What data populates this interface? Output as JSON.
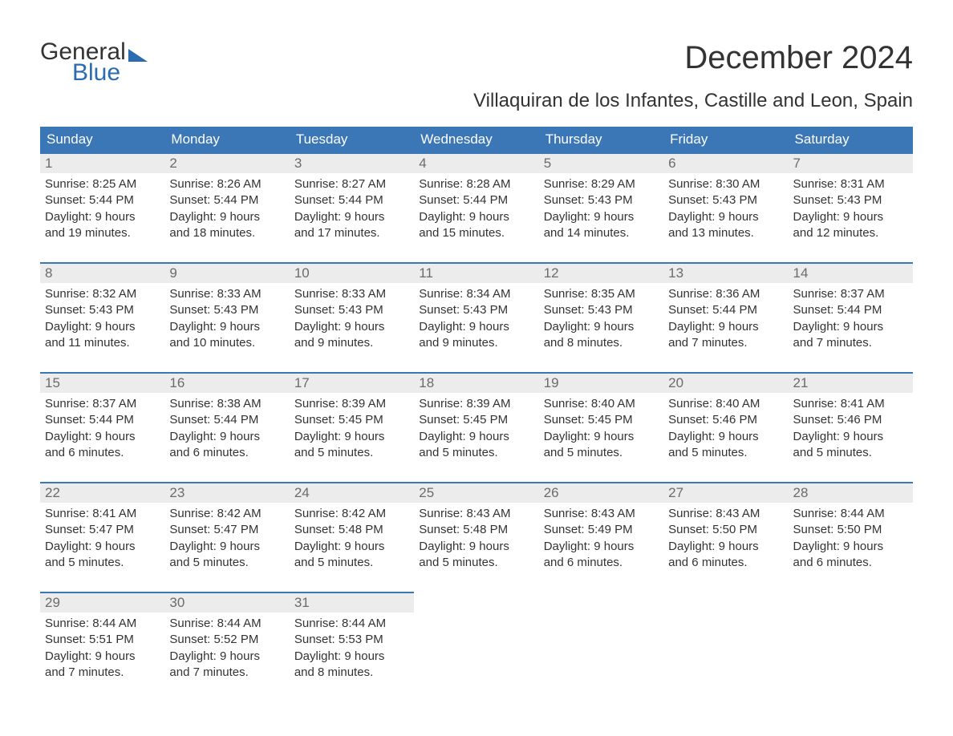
{
  "brand": {
    "part1": "General",
    "part2": "Blue"
  },
  "title": "December 2024",
  "subtitle": "Villaquiran de los Infantes, Castille and Leon, Spain",
  "colors": {
    "header_bg": "#3b76b6",
    "header_text": "#ffffff",
    "daynum_bg": "#ececec",
    "daynum_border": "#3b76b6",
    "body_text": "#333333",
    "brand_blue": "#2b6bb0"
  },
  "typography": {
    "title_fontsize": 40,
    "subtitle_fontsize": 24,
    "header_fontsize": 17,
    "body_fontsize": 15
  },
  "dow": [
    "Sunday",
    "Monday",
    "Tuesday",
    "Wednesday",
    "Thursday",
    "Friday",
    "Saturday"
  ],
  "weeks": [
    [
      {
        "n": "1",
        "sr": "Sunrise: 8:25 AM",
        "ss": "Sunset: 5:44 PM",
        "d1": "Daylight: 9 hours",
        "d2": "and 19 minutes."
      },
      {
        "n": "2",
        "sr": "Sunrise: 8:26 AM",
        "ss": "Sunset: 5:44 PM",
        "d1": "Daylight: 9 hours",
        "d2": "and 18 minutes."
      },
      {
        "n": "3",
        "sr": "Sunrise: 8:27 AM",
        "ss": "Sunset: 5:44 PM",
        "d1": "Daylight: 9 hours",
        "d2": "and 17 minutes."
      },
      {
        "n": "4",
        "sr": "Sunrise: 8:28 AM",
        "ss": "Sunset: 5:44 PM",
        "d1": "Daylight: 9 hours",
        "d2": "and 15 minutes."
      },
      {
        "n": "5",
        "sr": "Sunrise: 8:29 AM",
        "ss": "Sunset: 5:43 PM",
        "d1": "Daylight: 9 hours",
        "d2": "and 14 minutes."
      },
      {
        "n": "6",
        "sr": "Sunrise: 8:30 AM",
        "ss": "Sunset: 5:43 PM",
        "d1": "Daylight: 9 hours",
        "d2": "and 13 minutes."
      },
      {
        "n": "7",
        "sr": "Sunrise: 8:31 AM",
        "ss": "Sunset: 5:43 PM",
        "d1": "Daylight: 9 hours",
        "d2": "and 12 minutes."
      }
    ],
    [
      {
        "n": "8",
        "sr": "Sunrise: 8:32 AM",
        "ss": "Sunset: 5:43 PM",
        "d1": "Daylight: 9 hours",
        "d2": "and 11 minutes."
      },
      {
        "n": "9",
        "sr": "Sunrise: 8:33 AM",
        "ss": "Sunset: 5:43 PM",
        "d1": "Daylight: 9 hours",
        "d2": "and 10 minutes."
      },
      {
        "n": "10",
        "sr": "Sunrise: 8:33 AM",
        "ss": "Sunset: 5:43 PM",
        "d1": "Daylight: 9 hours",
        "d2": "and 9 minutes."
      },
      {
        "n": "11",
        "sr": "Sunrise: 8:34 AM",
        "ss": "Sunset: 5:43 PM",
        "d1": "Daylight: 9 hours",
        "d2": "and 9 minutes."
      },
      {
        "n": "12",
        "sr": "Sunrise: 8:35 AM",
        "ss": "Sunset: 5:43 PM",
        "d1": "Daylight: 9 hours",
        "d2": "and 8 minutes."
      },
      {
        "n": "13",
        "sr": "Sunrise: 8:36 AM",
        "ss": "Sunset: 5:44 PM",
        "d1": "Daylight: 9 hours",
        "d2": "and 7 minutes."
      },
      {
        "n": "14",
        "sr": "Sunrise: 8:37 AM",
        "ss": "Sunset: 5:44 PM",
        "d1": "Daylight: 9 hours",
        "d2": "and 7 minutes."
      }
    ],
    [
      {
        "n": "15",
        "sr": "Sunrise: 8:37 AM",
        "ss": "Sunset: 5:44 PM",
        "d1": "Daylight: 9 hours",
        "d2": "and 6 minutes."
      },
      {
        "n": "16",
        "sr": "Sunrise: 8:38 AM",
        "ss": "Sunset: 5:44 PM",
        "d1": "Daylight: 9 hours",
        "d2": "and 6 minutes."
      },
      {
        "n": "17",
        "sr": "Sunrise: 8:39 AM",
        "ss": "Sunset: 5:45 PM",
        "d1": "Daylight: 9 hours",
        "d2": "and 5 minutes."
      },
      {
        "n": "18",
        "sr": "Sunrise: 8:39 AM",
        "ss": "Sunset: 5:45 PM",
        "d1": "Daylight: 9 hours",
        "d2": "and 5 minutes."
      },
      {
        "n": "19",
        "sr": "Sunrise: 8:40 AM",
        "ss": "Sunset: 5:45 PM",
        "d1": "Daylight: 9 hours",
        "d2": "and 5 minutes."
      },
      {
        "n": "20",
        "sr": "Sunrise: 8:40 AM",
        "ss": "Sunset: 5:46 PM",
        "d1": "Daylight: 9 hours",
        "d2": "and 5 minutes."
      },
      {
        "n": "21",
        "sr": "Sunrise: 8:41 AM",
        "ss": "Sunset: 5:46 PM",
        "d1": "Daylight: 9 hours",
        "d2": "and 5 minutes."
      }
    ],
    [
      {
        "n": "22",
        "sr": "Sunrise: 8:41 AM",
        "ss": "Sunset: 5:47 PM",
        "d1": "Daylight: 9 hours",
        "d2": "and 5 minutes."
      },
      {
        "n": "23",
        "sr": "Sunrise: 8:42 AM",
        "ss": "Sunset: 5:47 PM",
        "d1": "Daylight: 9 hours",
        "d2": "and 5 minutes."
      },
      {
        "n": "24",
        "sr": "Sunrise: 8:42 AM",
        "ss": "Sunset: 5:48 PM",
        "d1": "Daylight: 9 hours",
        "d2": "and 5 minutes."
      },
      {
        "n": "25",
        "sr": "Sunrise: 8:43 AM",
        "ss": "Sunset: 5:48 PM",
        "d1": "Daylight: 9 hours",
        "d2": "and 5 minutes."
      },
      {
        "n": "26",
        "sr": "Sunrise: 8:43 AM",
        "ss": "Sunset: 5:49 PM",
        "d1": "Daylight: 9 hours",
        "d2": "and 6 minutes."
      },
      {
        "n": "27",
        "sr": "Sunrise: 8:43 AM",
        "ss": "Sunset: 5:50 PM",
        "d1": "Daylight: 9 hours",
        "d2": "and 6 minutes."
      },
      {
        "n": "28",
        "sr": "Sunrise: 8:44 AM",
        "ss": "Sunset: 5:50 PM",
        "d1": "Daylight: 9 hours",
        "d2": "and 6 minutes."
      }
    ],
    [
      {
        "n": "29",
        "sr": "Sunrise: 8:44 AM",
        "ss": "Sunset: 5:51 PM",
        "d1": "Daylight: 9 hours",
        "d2": "and 7 minutes."
      },
      {
        "n": "30",
        "sr": "Sunrise: 8:44 AM",
        "ss": "Sunset: 5:52 PM",
        "d1": "Daylight: 9 hours",
        "d2": "and 7 minutes."
      },
      {
        "n": "31",
        "sr": "Sunrise: 8:44 AM",
        "ss": "Sunset: 5:53 PM",
        "d1": "Daylight: 9 hours",
        "d2": "and 8 minutes."
      },
      {
        "n": "",
        "sr": "",
        "ss": "",
        "d1": "",
        "d2": ""
      },
      {
        "n": "",
        "sr": "",
        "ss": "",
        "d1": "",
        "d2": ""
      },
      {
        "n": "",
        "sr": "",
        "ss": "",
        "d1": "",
        "d2": ""
      },
      {
        "n": "",
        "sr": "",
        "ss": "",
        "d1": "",
        "d2": ""
      }
    ]
  ]
}
